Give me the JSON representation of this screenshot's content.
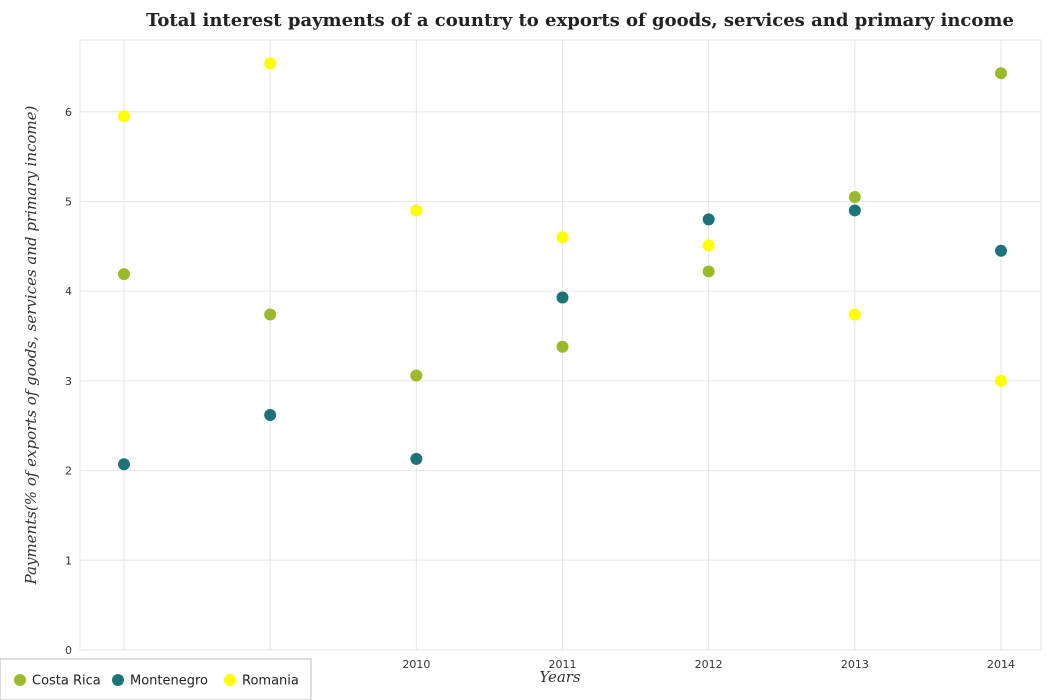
{
  "chart_data": {
    "type": "scatter",
    "title": "Total interest payments of a country to exports of goods, services and primary income",
    "xlabel": "Years",
    "ylabel": "Payments(% of exports of goods, services and primary income)",
    "categories": [
      "2008",
      "2009",
      "2010",
      "2011",
      "2012",
      "2013",
      "2014"
    ],
    "ylim": [
      0,
      6.8
    ],
    "yticks": [
      0,
      1,
      2,
      3,
      4,
      5,
      6
    ],
    "ytick_labels": [
      "0",
      "1",
      "2",
      "3",
      "4",
      "5",
      "6"
    ],
    "grid": true,
    "legend_position": "bottom-left",
    "series": [
      {
        "name": "Costa Rica",
        "color": "#9aba2c",
        "values": [
          4.19,
          3.74,
          3.06,
          3.38,
          4.22,
          5.05,
          6.43
        ]
      },
      {
        "name": "Montenegro",
        "color": "#1c7478",
        "values": [
          2.07,
          2.62,
          2.13,
          3.93,
          4.8,
          4.9,
          4.45
        ]
      },
      {
        "name": "Romania",
        "color": "#ffff00",
        "values": [
          5.95,
          6.54,
          4.9,
          4.6,
          4.51,
          3.74,
          3.0
        ]
      }
    ]
  }
}
